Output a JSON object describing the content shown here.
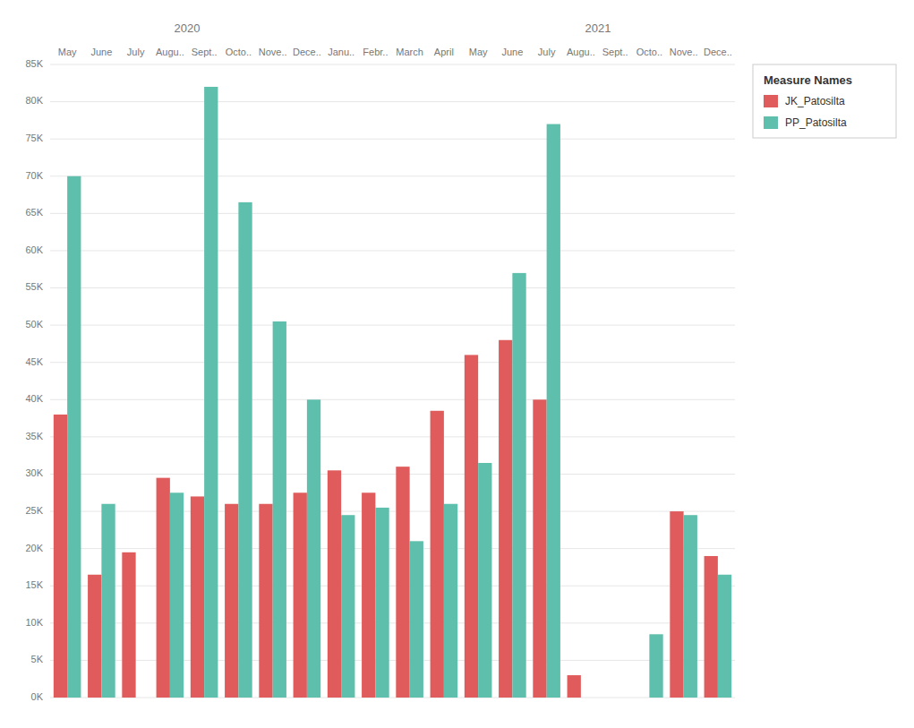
{
  "chart_data": {
    "type": "bar",
    "categories": [
      "May",
      "June",
      "July",
      "Augu..",
      "Sept..",
      "Octo..",
      "Nove..",
      "Dece..",
      "Janu..",
      "Febr..",
      "March",
      "April",
      "May",
      "June",
      "July",
      "Augu..",
      "Sept..",
      "Octo..",
      "Nove..",
      "Dece.."
    ],
    "series": [
      {
        "name": "JK_Patosilta",
        "color": "#E05C5C",
        "values": [
          38000,
          16500,
          19500,
          29500,
          27000,
          26000,
          26000,
          27500,
          30500,
          27500,
          31000,
          38500,
          46000,
          48000,
          40000,
          3000,
          null,
          null,
          25000,
          19000
        ]
      },
      {
        "name": "PP_Patosilta",
        "color": "#5FBFAD",
        "values": [
          70000,
          26000,
          null,
          27500,
          82000,
          66500,
          50500,
          40000,
          24500,
          25500,
          21000,
          26000,
          31500,
          57000,
          77000,
          null,
          null,
          8500,
          24500,
          16500
        ]
      }
    ],
    "ylim": [
      0,
      85000
    ],
    "yticks": [
      {
        "value": 0,
        "label": "0K"
      },
      {
        "value": 5000,
        "label": "5K"
      },
      {
        "value": 10000,
        "label": "10K"
      },
      {
        "value": 15000,
        "label": "15K"
      },
      {
        "value": 20000,
        "label": "20K"
      },
      {
        "value": 25000,
        "label": "25K"
      },
      {
        "value": 30000,
        "label": "30K"
      },
      {
        "value": 35000,
        "label": "35K"
      },
      {
        "value": 40000,
        "label": "40K"
      },
      {
        "value": 45000,
        "label": "45K"
      },
      {
        "value": 50000,
        "label": "50K"
      },
      {
        "value": 55000,
        "label": "55K"
      },
      {
        "value": 60000,
        "label": "60K"
      },
      {
        "value": 65000,
        "label": "65K"
      },
      {
        "value": 70000,
        "label": "70K"
      },
      {
        "value": 75000,
        "label": "75K"
      },
      {
        "value": 80000,
        "label": "80K"
      },
      {
        "value": 85000,
        "label": "85K"
      }
    ],
    "annotations": [
      {
        "text": "2020",
        "x": 3.5
      },
      {
        "text": "2021",
        "x": 15.5
      }
    ],
    "legend_title": "Measure Names",
    "legend": "right",
    "grid": true
  }
}
